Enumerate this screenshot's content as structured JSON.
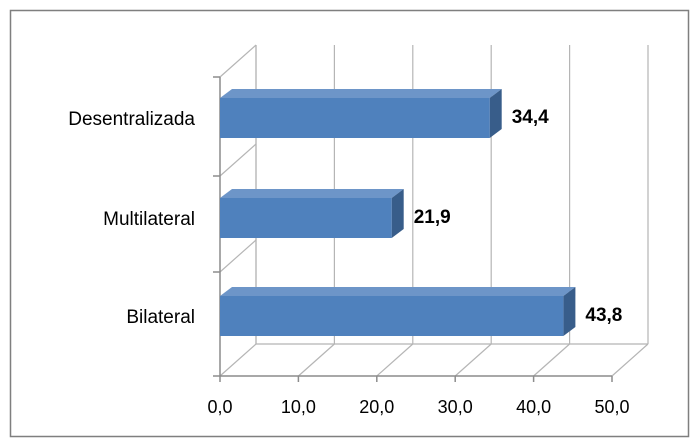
{
  "chart_data": {
    "type": "bar",
    "orientation": "horizontal",
    "style": "3d",
    "categories": [
      "Desentralizada",
      "Multilateral",
      "Bilateral"
    ],
    "values": [
      34.4,
      21.9,
      43.8
    ],
    "data_labels": [
      "34,4",
      "21,9",
      "43,8"
    ],
    "x_ticks": [
      "0,0",
      "10,0",
      "20,0",
      "30,0",
      "40,0",
      "50,0"
    ],
    "xlim": [
      0,
      50
    ],
    "title": "",
    "xlabel": "",
    "ylabel": "",
    "grid": true,
    "legend": "none",
    "colors": {
      "bar_front": "#4f81bd",
      "bar_top": "#6d95c8",
      "bar_side": "#385d8a",
      "gridline": "#b5b5b5",
      "frame_border": "#7f7f7f"
    }
  }
}
